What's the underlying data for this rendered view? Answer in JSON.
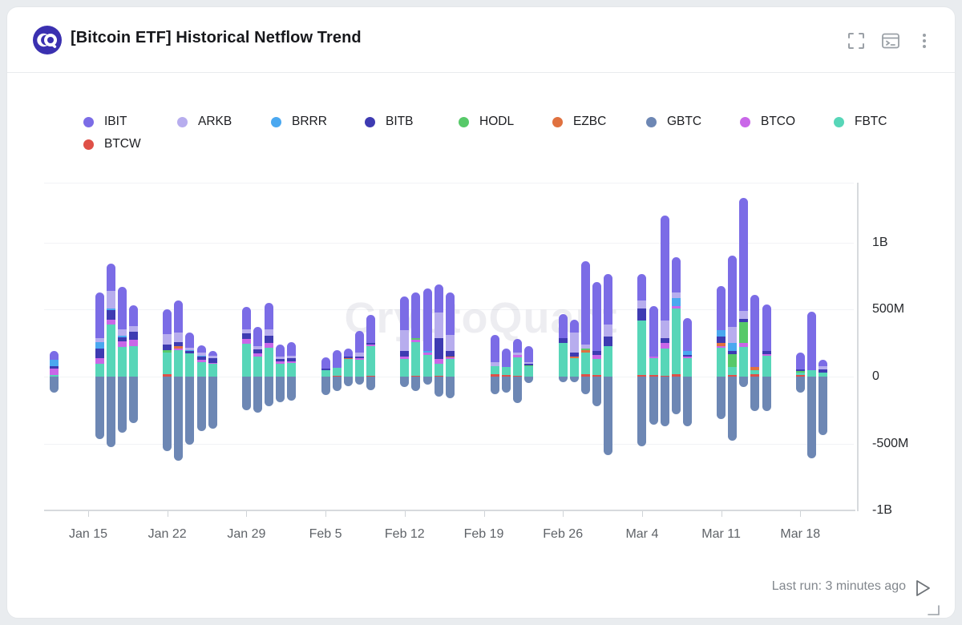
{
  "header": {
    "title": "[Bitcoin ETF] Historical Netflow Trend",
    "actions": [
      "fullscreen",
      "open-terminal",
      "more-options"
    ]
  },
  "brand": {
    "logo": "cryptoquant-logo",
    "logo_color": "#3a30b0"
  },
  "watermark": "CryptoQuant",
  "footer": {
    "last_run": "Last run: 3 minutes ago",
    "play_icon": "run-query-play-icon",
    "resize_icon": "resize-corner-icon"
  },
  "legend": {
    "items": [
      {
        "label": "IBIT",
        "color": "#7b6ce6"
      },
      {
        "label": "ARKB",
        "color": "#b7adee"
      },
      {
        "label": "BRRR",
        "color": "#4aa8f0"
      },
      {
        "label": "BITB",
        "color": "#3e3bb2"
      },
      {
        "label": "HODL",
        "color": "#57c969"
      },
      {
        "label": "EZBC",
        "color": "#e0713f"
      },
      {
        "label": "GBTC",
        "color": "#6d87b4"
      },
      {
        "label": "BTCO",
        "color": "#c967e8"
      },
      {
        "label": "FBTC",
        "color": "#57d6b8"
      },
      {
        "label": "BTCW",
        "color": "#df5047"
      }
    ]
  },
  "chart_data": {
    "type": "bar",
    "stacked": true,
    "title": "[Bitcoin ETF] Historical Netflow Trend",
    "unit": "USD (millions)",
    "grid": true,
    "legend_position": "top",
    "y_axis_position": "right",
    "ylim_millions": [
      -1000,
      1446
    ],
    "y_ticks": [
      {
        "label": "1B",
        "value": 1000
      },
      {
        "label": "500M",
        "value": 500
      },
      {
        "label": "0",
        "value": 0
      },
      {
        "label": "-500M",
        "value": -500
      },
      {
        "label": "-1B",
        "value": -1000
      }
    ],
    "x_ticks": [
      {
        "label": "Jan 15",
        "day": 0
      },
      {
        "label": "Jan 22",
        "day": 7
      },
      {
        "label": "Jan 29",
        "day": 14
      },
      {
        "label": "Feb 5",
        "day": 21
      },
      {
        "label": "Feb 12",
        "day": 28
      },
      {
        "label": "Feb 19",
        "day": 35
      },
      {
        "label": "Feb 26",
        "day": 42
      },
      {
        "label": "Mar 4",
        "day": 49
      },
      {
        "label": "Mar 11",
        "day": 56
      },
      {
        "label": "Mar 18",
        "day": 63
      }
    ],
    "stack_order_bottom_to_top": [
      "BTCW",
      "FBTC",
      "BTCO",
      "EZBC",
      "HODL",
      "BITB",
      "BRRR",
      "ARKB",
      "IBIT"
    ],
    "negative_series": "GBTC",
    "bars": [
      {
        "date": "Jan 12",
        "day": -3,
        "flows": {
          "IBIT": 66,
          "BRRR": 48,
          "BITB": 18,
          "BTCO": 48,
          "FBTC": 12,
          "GBTC": -119
        }
      },
      {
        "date": "Jan 16",
        "day": 1,
        "flows": {
          "IBIT": 339,
          "ARKB": 30,
          "BRRR": 48,
          "BITB": 71,
          "BTCO": 42,
          "FBTC": 95,
          "GBTC": -464
        }
      },
      {
        "date": "Jan 17",
        "day": 2,
        "flows": {
          "IBIT": 202,
          "ARKB": 131,
          "BRRR": 15,
          "BITB": 71,
          "BTCO": 36,
          "FBTC": 387,
          "GBTC": -524
        }
      },
      {
        "date": "Jan 18",
        "day": 3,
        "flows": {
          "IBIT": 320,
          "ARKB": 48,
          "BRRR": 12,
          "BITB": 30,
          "BTCO": 42,
          "FBTC": 220,
          "GBTC": -416
        }
      },
      {
        "date": "Jan 19",
        "day": 4,
        "flows": {
          "IBIT": 155,
          "ARKB": 42,
          "BITB": 59,
          "BTCO": 48,
          "FBTC": 226,
          "GBTC": -345
        }
      },
      {
        "date": "Jan 22",
        "day": 7,
        "flows": {
          "IBIT": 185,
          "ARKB": 77,
          "BITB": 42,
          "HODL": 18,
          "FBTC": 161,
          "BTCW": 18,
          "GBTC": -553
        }
      },
      {
        "date": "Jan 23",
        "day": 8,
        "flows": {
          "IBIT": 238,
          "ARKB": 71,
          "BITB": 30,
          "EZBC": 18,
          "BTCO": 12,
          "FBTC": 196,
          "GBTC": -625
        }
      },
      {
        "date": "Jan 24",
        "day": 9,
        "flows": {
          "IBIT": 113,
          "ARKB": 18,
          "BRRR": 6,
          "BITB": 18,
          "FBTC": 172,
          "GBTC": -506
        }
      },
      {
        "date": "Jan 25",
        "day": 10,
        "flows": {
          "IBIT": 54,
          "ARKB": 24,
          "BRRR": 6,
          "BITB": 24,
          "BTCO": 18,
          "FBTC": 107,
          "GBTC": -405
        }
      },
      {
        "date": "Jan 26",
        "day": 11,
        "flows": {
          "IBIT": 36,
          "ARKB": 18,
          "BITB": 36,
          "BTCO": 5,
          "FBTC": 95,
          "GBTC": -387
        }
      },
      {
        "date": "Jan 29",
        "day": 14,
        "flows": {
          "IBIT": 170,
          "ARKB": 30,
          "BITB": 42,
          "BTCO": 30,
          "FBTC": 248,
          "GBTC": -250
        }
      },
      {
        "date": "Jan 30",
        "day": 15,
        "flows": {
          "IBIT": 140,
          "ARKB": 24,
          "BITB": 30,
          "BTCO": 24,
          "FBTC": 152,
          "GBTC": -270
        }
      },
      {
        "date": "Jan 31",
        "day": 16,
        "flows": {
          "IBIT": 200,
          "ARKB": 48,
          "BITB": 54,
          "BTCO": 36,
          "FBTC": 212,
          "GBTC": -220
        }
      },
      {
        "date": "Feb 1",
        "day": 17,
        "flows": {
          "IBIT": 90,
          "ARKB": 18,
          "BITB": 18,
          "BTCO": 18,
          "FBTC": 96,
          "GBTC": -190
        }
      },
      {
        "date": "Feb 2",
        "day": 18,
        "flows": {
          "IBIT": 100,
          "ARKB": 20,
          "BITB": 20,
          "BTCO": 15,
          "FBTC": 100,
          "GBTC": -180
        }
      },
      {
        "date": "Feb 5",
        "day": 21,
        "flows": {
          "IBIT": 85,
          "BITB": 8,
          "FBTC": 50,
          "GBTC": -137
        }
      },
      {
        "date": "Feb 6",
        "day": 22,
        "flows": {
          "IBIT": 130,
          "BTCW": 6,
          "FBTC": 60,
          "GBTC": -107
        }
      },
      {
        "date": "Feb 7",
        "day": 23,
        "flows": {
          "IBIT": 60,
          "BITB": 12,
          "EZBC": 6,
          "FBTC": 130,
          "GBTC": -71
        }
      },
      {
        "date": "Feb 8",
        "day": 24,
        "flows": {
          "IBIT": 160,
          "ARKB": 30,
          "BITB": 12,
          "BTCO": 12,
          "FBTC": 126,
          "GBTC": -60
        }
      },
      {
        "date": "Feb 9",
        "day": 25,
        "flows": {
          "IBIT": 210,
          "BITB": 12,
          "BTCW": 6,
          "BTCO": 10,
          "FBTC": 220,
          "GBTC": -101
        }
      },
      {
        "date": "Feb 12",
        "day": 28,
        "flows": {
          "IBIT": 250,
          "ARKB": 155,
          "BITB": 42,
          "BTCO": 18,
          "FBTC": 130,
          "GBTC": -78
        }
      },
      {
        "date": "Feb 13",
        "day": 29,
        "flows": {
          "IBIT": 345,
          "HODL": 8,
          "BTCW": 6,
          "BTCO": 21,
          "FBTC": 250,
          "GBTC": -107
        }
      },
      {
        "date": "Feb 14",
        "day": 30,
        "flows": {
          "IBIT": 464,
          "BRRR": 12,
          "BTCO": 19,
          "FBTC": 160,
          "GBTC": -60
        }
      },
      {
        "date": "Feb 15",
        "day": 31,
        "flows": {
          "IBIT": 214,
          "ARKB": 190,
          "BITB": 155,
          "BTCW": 8,
          "BTCO": 33,
          "FBTC": 90,
          "GBTC": -149
        }
      },
      {
        "date": "Feb 16",
        "day": 32,
        "flows": {
          "IBIT": 315,
          "ARKB": 119,
          "BITB": 42,
          "EZBC": 6,
          "BTCO": 12,
          "FBTC": 131,
          "GBTC": -160
        }
      },
      {
        "date": "Feb 20",
        "day": 36,
        "flows": {
          "IBIT": 202,
          "ARKB": 30,
          "BTCW": 18,
          "FBTC": 60,
          "GBTC": -131
        }
      },
      {
        "date": "Feb 21",
        "day": 37,
        "flows": {
          "IBIT": 137,
          "BTCW": 11,
          "FBTC": 60,
          "GBTC": -119
        }
      },
      {
        "date": "Feb 22",
        "day": 38,
        "flows": {
          "IBIT": 101,
          "ARKB": 18,
          "BTCO": 18,
          "BTCW": 6,
          "FBTC": 137,
          "GBTC": -196
        }
      },
      {
        "date": "Feb 23",
        "day": 39,
        "flows": {
          "IBIT": 119,
          "ARKB": 12,
          "BITB": 12,
          "HODL": 6,
          "FBTC": 77,
          "GBTC": -48
        }
      },
      {
        "date": "Feb 26",
        "day": 42,
        "flows": {
          "IBIT": 178,
          "BITB": 36,
          "FBTC": 250,
          "GBTC": -42
        }
      },
      {
        "date": "Feb 27",
        "day": 43,
        "flows": {
          "IBIT": 95,
          "ARKB": 149,
          "BITB": 30,
          "EZBC": 12,
          "FBTC": 136,
          "GBTC": -42
        }
      },
      {
        "date": "Feb 28",
        "day": 44,
        "flows": {
          "IBIT": 625,
          "ARKB": 30,
          "EZBC": 18,
          "HODL": 12,
          "BTCW": 18,
          "FBTC": 160,
          "GBTC": -131
        }
      },
      {
        "date": "Feb 29",
        "day": 45,
        "flows": {
          "IBIT": 518,
          "BITB": 30,
          "BTCW": 10,
          "BTCO": 30,
          "FBTC": 120,
          "GBTC": -220
        }
      },
      {
        "date": "Mar 1",
        "day": 46,
        "flows": {
          "IBIT": 375,
          "ARKB": 89,
          "BITB": 72,
          "FBTC": 226,
          "GBTC": -583
        }
      },
      {
        "date": "Mar 4",
        "day": 49,
        "flows": {
          "IBIT": 196,
          "ARKB": 60,
          "BITB": 89,
          "BTCW": 12,
          "FBTC": 405,
          "GBTC": -518
        }
      },
      {
        "date": "Mar 5",
        "day": 50,
        "flows": {
          "IBIT": 375,
          "BTCW": 12,
          "BTCO": 12,
          "FBTC": 125,
          "GBTC": -357
        }
      },
      {
        "date": "Mar 6",
        "day": 51,
        "flows": {
          "IBIT": 786,
          "ARKB": 131,
          "BITB": 36,
          "BTCW": 6,
          "BTCO": 41,
          "FBTC": 202,
          "GBTC": -369
        }
      },
      {
        "date": "Mar 7",
        "day": 52,
        "flows": {
          "IBIT": 268,
          "ARKB": 42,
          "BRRR": 60,
          "BTCW": 18,
          "BTCO": 17,
          "FBTC": 488,
          "GBTC": -280
        }
      },
      {
        "date": "Mar 8",
        "day": 53,
        "flows": {
          "IBIT": 244,
          "BRRR": 30,
          "BITB": 12,
          "BTCO": 11,
          "FBTC": 137,
          "GBTC": -369
        }
      },
      {
        "date": "Mar 11",
        "day": 56,
        "flows": {
          "IBIT": 327,
          "BRRR": 48,
          "BITB": 48,
          "EZBC": 24,
          "BTCO": 12,
          "FBTC": 214,
          "GBTC": -315
        }
      },
      {
        "date": "Mar 12",
        "day": 57,
        "flows": {
          "IBIT": 536,
          "ARKB": 119,
          "BRRR": 60,
          "BITB": 24,
          "HODL": 95,
          "BTCW": 11,
          "FBTC": 60,
          "GBTC": -476
        }
      },
      {
        "date": "Mar 13",
        "day": 58,
        "flows": {
          "IBIT": 845,
          "ARKB": 60,
          "BITB": 24,
          "HODL": 155,
          "BTCO": 29,
          "FBTC": 220,
          "GBTC": -77
        }
      },
      {
        "date": "Mar 14",
        "day": 59,
        "flows": {
          "IBIT": 536,
          "EZBC": 24,
          "BTCW": 18,
          "FBTC": 29,
          "GBTC": -256
        }
      },
      {
        "date": "Mar 15",
        "day": 60,
        "flows": {
          "IBIT": 345,
          "BITB": 24,
          "BTCO": 12,
          "FBTC": 155,
          "GBTC": -256
        }
      },
      {
        "date": "Mar 18",
        "day": 63,
        "flows": {
          "IBIT": 125,
          "BITB": 12,
          "HODL": 12,
          "BTCW": 12,
          "FBTC": 17,
          "GBTC": -119
        }
      },
      {
        "date": "Mar 19",
        "day": 64,
        "flows": {
          "IBIT": 434,
          "FBTC": 48,
          "GBTC": -607
        }
      },
      {
        "date": "Mar 20",
        "day": 65,
        "flows": {
          "IBIT": 48,
          "ARKB": 24,
          "BITB": 24,
          "FBTC": 29,
          "GBTC": -434
        }
      }
    ]
  }
}
